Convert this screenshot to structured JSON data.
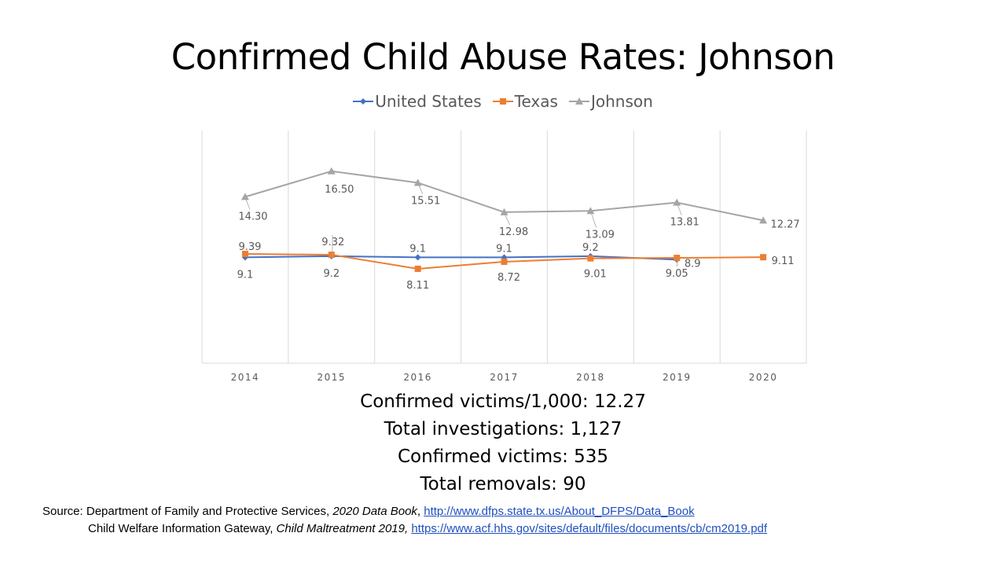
{
  "title": "Confirmed Child Abuse Rates: Johnson",
  "chart_data": {
    "type": "line",
    "title": "Confirmed Child Abuse Rates: Johnson",
    "categories": [
      "2014",
      "2015",
      "2016",
      "2017",
      "2018",
      "2019",
      "2020"
    ],
    "ylim": [
      0,
      20
    ],
    "legend_position": "top",
    "grid": "vertical",
    "series": [
      {
        "name": "United States",
        "color": "#4472c4",
        "marker": "diamond",
        "values": [
          9.1,
          9.2,
          9.1,
          9.1,
          9.2,
          8.9,
          null
        ],
        "labels": [
          "9.1",
          "9.2",
          "9.1",
          "9.1",
          "9.2",
          "8.9",
          ""
        ]
      },
      {
        "name": "Texas",
        "color": "#ed7d31",
        "marker": "square",
        "values": [
          9.39,
          9.32,
          8.11,
          8.72,
          9.01,
          9.05,
          9.11
        ],
        "labels": [
          "9.39",
          "9.32",
          "8.11",
          "8.72",
          "9.01",
          "9.05",
          "9.11"
        ]
      },
      {
        "name": "Johnson",
        "color": "#a5a5a5",
        "marker": "triangle",
        "values": [
          14.3,
          16.5,
          15.51,
          12.98,
          13.09,
          13.81,
          12.27
        ],
        "labels": [
          "14.30",
          "16.50",
          "15.51",
          "12.98",
          "13.09",
          "13.81",
          "12.27"
        ]
      }
    ]
  },
  "stats": {
    "victims_rate": "Confirmed victims/1,000: 12.27",
    "investigations": "Total investigations: 1,127",
    "victims": "Confirmed victims: 535",
    "removals": "Total removals: 90"
  },
  "source": {
    "label": "Source: Department of Family and Protective Services, ",
    "book": "2020 Data Book",
    "sep1": ", ",
    "link1": "http://www.dfps.state.tx.us/About_DFPS/Data_Book",
    "line2_prefix": "Child Welfare Information Gateway, ",
    "line2_title": "Child Maltreatment 2019,",
    "link2": "https://www.acf.hhs.gov/sites/default/files/documents/cb/cm2019.pdf"
  }
}
